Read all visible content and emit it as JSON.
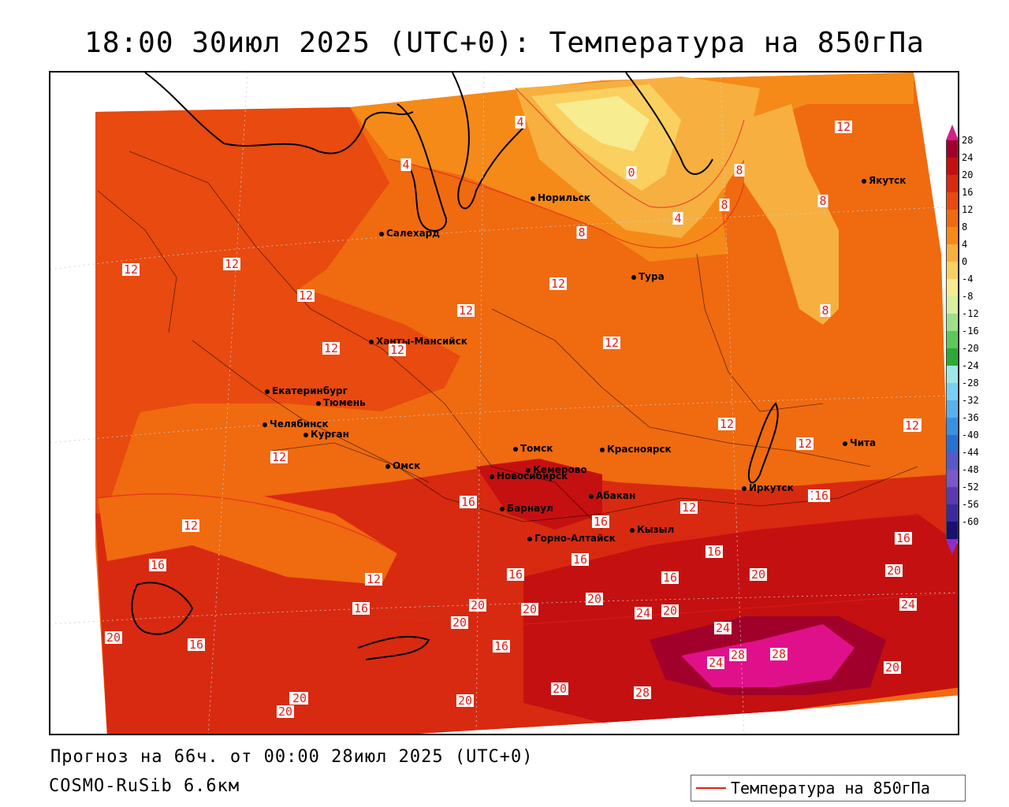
{
  "title": "18:00 30июл 2025 (UTC+0): Температура на 850гПа",
  "footer": {
    "forecast": "Прогноз на 66ч. от 00:00 28июл 2025 (UTC+0)",
    "model": "COSMO-RuSib 6.6км"
  },
  "legend": {
    "label": "Температура на 850гПа",
    "color": "#e0201a"
  },
  "colorbar": {
    "ticks": [
      "28",
      "24",
      "20",
      "16",
      "12",
      "8",
      "4",
      "0",
      "-4",
      "-8",
      "-12",
      "-16",
      "-20",
      "-24",
      "-28",
      "-32",
      "-36",
      "-40",
      "-44",
      "-48",
      "-52",
      "-56",
      "-60"
    ],
    "colors": [
      "#a0002a",
      "#c41010",
      "#d82a10",
      "#e84a10",
      "#f06a10",
      "#f58a18",
      "#f7b040",
      "#fad060",
      "#f8ec90",
      "#d8f0a0",
      "#9ee08a",
      "#5cc85a",
      "#2ea838",
      "#9ee8e8",
      "#7ad0f0",
      "#58b0ec",
      "#3c90e0",
      "#2a70d0",
      "#5858c8",
      "#7a58c8",
      "#5a3ab0",
      "#3a2a9a",
      "#1a1070"
    ]
  },
  "cities": [
    {
      "name": "Норильск"
    },
    {
      "name": "Якутск"
    },
    {
      "name": "Салехард"
    },
    {
      "name": "Тура"
    },
    {
      "name": "Ханты-Мансийск"
    },
    {
      "name": "Екатеринбург"
    },
    {
      "name": "Тюмень"
    },
    {
      "name": "Челябинск"
    },
    {
      "name": "Курган"
    },
    {
      "name": "Омск"
    },
    {
      "name": "Томск"
    },
    {
      "name": "Красноярск"
    },
    {
      "name": "Новосибирск"
    },
    {
      "name": "Кемерово"
    },
    {
      "name": "Абакан"
    },
    {
      "name": "Барнаул"
    },
    {
      "name": "Горно-Алтайск"
    },
    {
      "name": "Кызыл"
    },
    {
      "name": "Иркутск"
    },
    {
      "name": "Чита"
    }
  ],
  "isolines": [
    "12",
    "12",
    "12",
    "12",
    "12",
    "12",
    "12",
    "12",
    "12",
    "12",
    "12",
    "12",
    "12",
    "12",
    "12",
    "12",
    "12",
    "12",
    "8",
    "8",
    "8",
    "8",
    "8",
    "4",
    "4",
    "4",
    "0",
    "16",
    "16",
    "16",
    "16",
    "16",
    "16",
    "16",
    "16",
    "16",
    "16",
    "16",
    "16",
    "16",
    "20",
    "20",
    "20",
    "20",
    "20",
    "20",
    "20",
    "20",
    "20",
    "20",
    "20",
    "20",
    "20",
    "20",
    "20",
    "24",
    "24",
    "24",
    "24",
    "28",
    "28",
    "28"
  ]
}
